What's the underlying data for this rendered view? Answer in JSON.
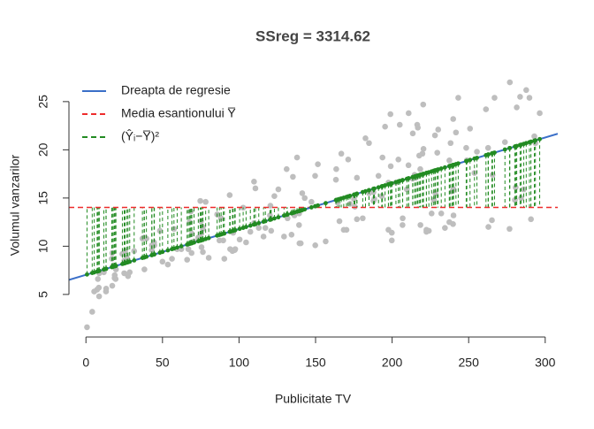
{
  "chart_data": {
    "type": "scatter",
    "title": "SSreg = 3314.62",
    "xlabel": "Publicitate TV",
    "ylabel": "Volumul vanzarilor",
    "x": [
      230.1,
      44.5,
      17.2,
      151.5,
      180.8,
      8.7,
      57.5,
      120.2,
      8.6,
      199.8,
      66.1,
      214.7,
      23.8,
      97.5,
      204.1,
      195.4,
      67.8,
      281.4,
      69.2,
      147.3,
      218.4,
      237.4,
      13.2,
      228.3,
      62.3,
      262.9,
      142.9,
      240.1,
      248.8,
      70.6,
      292.9,
      112.9,
      97.2,
      265.6,
      95.7,
      290.7,
      266.9,
      74.7,
      43.1,
      228,
      202.5,
      177,
      293.6,
      206.9,
      25.1,
      175.1,
      89.7,
      239.9,
      227.2,
      66.9,
      199.8,
      100.4,
      216.4,
      182.6,
      262.7,
      198.9,
      7.3,
      136.2,
      210.8,
      210.7,
      53.5,
      261.3,
      239.3,
      102.7,
      131.1,
      69,
      31.5,
      139.3,
      237.4,
      216.8,
      199.1,
      109.8,
      26.8,
      129.4,
      213.4,
      16.9,
      27.5,
      120.5,
      5.4,
      116,
      76.4,
      239.8,
      75.3,
      68.4,
      213.5,
      193.2,
      76.3,
      110.7,
      88.3,
      109.8,
      134.3,
      28.6,
      217.7,
      250.9,
      107.4,
      163.3,
      197.6,
      184.9,
      289.7,
      135.2,
      222.4,
      296.4,
      280.2,
      187.9,
      238.2,
      137.9,
      25,
      90.4,
      13.1,
      255.4,
      225.8,
      241.7,
      175.7,
      209.6,
      78.2,
      75.1,
      139.2,
      76.4,
      125.7,
      19.4,
      141.3,
      18.8,
      224,
      123.1,
      229.5,
      87.2,
      7.8,
      80.2,
      220.3,
      59.6,
      0.7,
      265.2,
      8.4,
      219.8,
      36.9,
      48.3,
      25.6,
      273.7,
      43,
      184.9,
      73.4,
      193.7,
      220.5,
      104.6,
      96.2,
      140.3,
      240.1,
      243.2,
      38,
      44.7,
      280.7,
      121,
      197.6,
      171.3,
      187.8,
      4.1,
      93.9,
      149.8,
      11.7,
      131.7,
      172.5,
      85.7,
      188.4,
      163.5,
      117.2,
      234.5,
      17.9,
      206.8,
      215.4,
      284.3,
      50,
      164.5,
      19.6,
      168.4,
      222.4,
      276.9,
      248.4,
      170.2,
      276.7,
      165.6,
      156.6,
      218.5,
      56.2,
      287.6,
      253.8,
      205,
      139.5,
      191.1,
      286,
      18.7,
      39.5,
      75.5,
      17.2,
      166.8,
      149.7,
      38.2,
      94.2,
      177,
      283.6,
      232.1
    ],
    "values": [
      22.1,
      10.4,
      9.3,
      18.5,
      12.9,
      7.2,
      11.8,
      13.2,
      4.8,
      10.6,
      8.6,
      17.4,
      9.2,
      9.7,
      19,
      22.4,
      12.5,
      24.4,
      11.3,
      14.6,
      18,
      12.5,
      5.6,
      15.5,
      9.7,
      12,
      15,
      15.9,
      18.9,
      10.5,
      21.4,
      11.9,
      9.6,
      17.4,
      9.5,
      12.8,
      25.4,
      14.7,
      10.1,
      21.5,
      16.6,
      17.1,
      20.7,
      12.9,
      8.5,
      14.9,
      10.6,
      23.2,
      14.8,
      9.7,
      11.4,
      10.7,
      22.6,
      21.2,
      20.2,
      23.7,
      5.5,
      13.2,
      23.8,
      18.4,
      8.1,
      24.2,
      15.7,
      14,
      18,
      9.3,
      9.5,
      13.4,
      18.9,
      22.3,
      18.3,
      12.4,
      8.8,
      11,
      17,
      8.7,
      6.9,
      14.2,
      5.3,
      11,
      11.8,
      12.3,
      11.3,
      13.6,
      21.7,
      15.2,
      12,
      16,
      12.9,
      16.7,
      11.2,
      7.3,
      19.4,
      22.2,
      11.5,
      16.9,
      11.7,
      15.5,
      25.4,
      17.2,
      11.7,
      23.8,
      14.8,
      14.7,
      20.7,
      19.2,
      7.2,
      8.7,
      5.3,
      19.8,
      13.4,
      21.8,
      14.1,
      15.9,
      14.6,
      12.6,
      12.2,
      9.4,
      15.9,
      6.6,
      15.5,
      7,
      11.6,
      15.2,
      19.7,
      10.6,
      6.6,
      8.8,
      24.7,
      9.7,
      1.6,
      12.7,
      5.7,
      19.6,
      10.8,
      11.6,
      9.5,
      20.8,
      9.6,
      20.7,
      10.9,
      19.2,
      20.1,
      10.4,
      11.4,
      10.3,
      13.2,
      25.4,
      10.9,
      10.1,
      16.1,
      11.6,
      16.6,
      19,
      15.6,
      3.2,
      15.3,
      10.1,
      7.3,
      12.9,
      14.4,
      13.3,
      14.9,
      18,
      11.9,
      11.9,
      8,
      12.2,
      17.1,
      15,
      8.4,
      14.5,
      7.6,
      11.7,
      11.5,
      27,
      20.2,
      11.7,
      11.8,
      12.6,
      10.5,
      12.2,
      8.7,
      26.2,
      17.6,
      22.6,
      10.3,
      17.3,
      15.9,
      6.7,
      10.8,
      9.9,
      5.9,
      19.6,
      17.3,
      7.6,
      9.7,
      12.8,
      25.5,
      13.4
    ],
    "point_color": "#bebebe",
    "regression_line": {
      "name": "Dreapta de regresie",
      "color": "#3a6fc8",
      "intercept": 7.0326,
      "slope": 0.0475
    },
    "mean_line": {
      "name": "Media esantionului Y̅",
      "color": "#ee2c2c",
      "value": 14.0225
    },
    "deviations": {
      "name": "(Ŷᵢ−Y̅)²",
      "color": "#228b22"
    },
    "xlim": [
      -11.1,
      308.2
    ],
    "ylim": [
      0.584,
      28.016
    ],
    "xticks": [
      0,
      50,
      100,
      150,
      200,
      250,
      300
    ],
    "yticks": [
      5,
      10,
      15,
      20,
      25
    ],
    "legend": "topleft"
  }
}
